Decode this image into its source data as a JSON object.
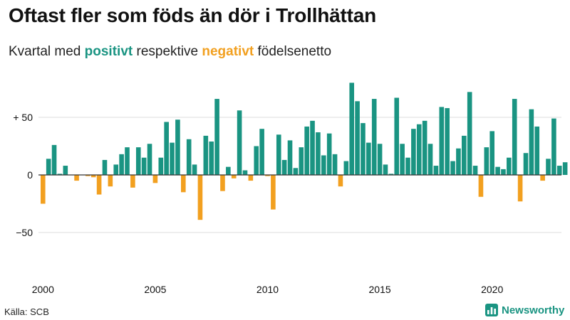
{
  "header": {
    "title": "Oftast fler som föds än dör i Trollhättan",
    "subtitle_prefix": "Kvartal med ",
    "subtitle_positive": "positivt",
    "subtitle_middle": " respektive ",
    "subtitle_negative": "negativt",
    "subtitle_suffix": " födelsenetto"
  },
  "footer": {
    "source": "Källa: SCB",
    "brand": "Newsworthy",
    "brand_icon": "bar-chart-logo-icon"
  },
  "colors": {
    "positive": "#1a9482",
    "negative": "#f2a020",
    "grid": "#dddddd",
    "zero_line": "#333333"
  },
  "chart_data": {
    "type": "bar",
    "xlabel": "",
    "ylabel": "",
    "x_start": "2000 Q1",
    "ylim": [
      -80,
      80
    ],
    "yticks": [
      {
        "value": 50,
        "label": "+ 50"
      },
      {
        "value": 0,
        "label": "0"
      },
      {
        "value": -50,
        "label": "−50"
      }
    ],
    "xticks": [
      "2000",
      "2005",
      "2010",
      "2015",
      "2020"
    ],
    "grid": true,
    "legend": "none",
    "values": [
      -25,
      14,
      26,
      1,
      8,
      0,
      -5,
      0,
      -1,
      -2,
      -17,
      13,
      -10,
      9,
      18,
      24,
      -11,
      24,
      15,
      27,
      -7,
      15,
      46,
      28,
      48,
      -15,
      31,
      9,
      -39,
      34,
      29,
      66,
      -14,
      7,
      -3,
      56,
      4,
      -5,
      25,
      40,
      -1,
      -30,
      35,
      13,
      30,
      6,
      24,
      42,
      47,
      37,
      17,
      36,
      18,
      -10,
      12,
      80,
      64,
      45,
      28,
      66,
      27,
      9,
      1,
      67,
      27,
      15,
      40,
      44,
      47,
      27,
      8,
      59,
      58,
      12,
      23,
      34,
      72,
      8,
      -19,
      24,
      38,
      7,
      5,
      15,
      66,
      -23,
      19,
      57,
      42,
      -5,
      14,
      49,
      8,
      11
    ]
  }
}
